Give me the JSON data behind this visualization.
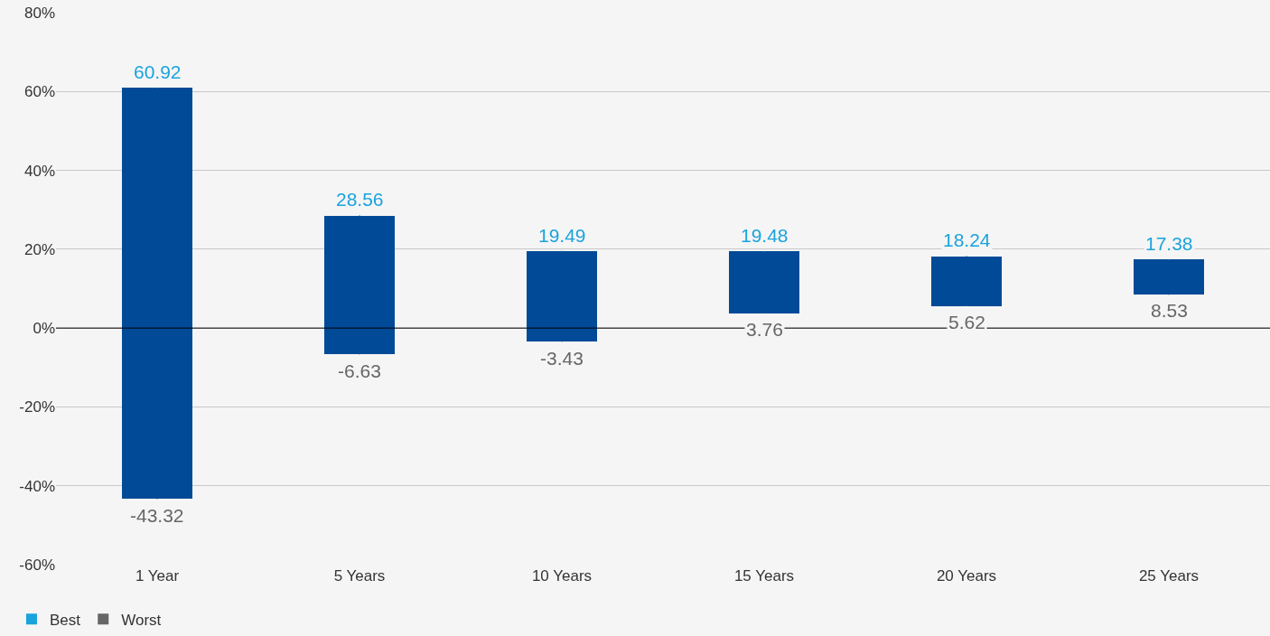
{
  "chart_data": {
    "type": "bar",
    "categories": [
      "1 Year",
      "5 Years",
      "10 Years",
      "15 Years",
      "20 Years",
      "25 Years"
    ],
    "base": [
      -43.32,
      -6.63,
      -3.43,
      3.76,
      5.62,
      8.53
    ],
    "values": [
      104.24,
      35.19,
      22.92,
      15.72,
      12.62,
      8.85
    ],
    "color": "#004a97",
    "series": [
      {
        "name": "Best",
        "type": "scatter",
        "marker": "square",
        "color": "#1aa3dd",
        "data_labels": true,
        "values": [
          60.92,
          28.56,
          19.49,
          19.48,
          18.24,
          17.38
        ]
      },
      {
        "name": "Worst",
        "type": "scatter",
        "marker": "square",
        "color": "#666666",
        "data_labels": true,
        "values": [
          -43.32,
          -6.63,
          -3.43,
          3.76,
          5.62,
          8.53
        ]
      }
    ],
    "ylim": [
      -60,
      80
    ],
    "yticks": [
      {
        "value": -60,
        "label": "-60%"
      },
      {
        "value": -40,
        "label": "-40%"
      },
      {
        "value": -20,
        "label": "-20%"
      },
      {
        "value": 0,
        "label": "0%"
      },
      {
        "value": 20,
        "label": "20%"
      },
      {
        "value": 40,
        "label": "40%"
      },
      {
        "value": 60,
        "label": "60%"
      },
      {
        "value": 80,
        "label": "80%"
      }
    ],
    "ref_lines": [
      {
        "axis": "y",
        "value": 0,
        "color": "#000000"
      }
    ],
    "grid": "y",
    "legend": "bottom left"
  }
}
